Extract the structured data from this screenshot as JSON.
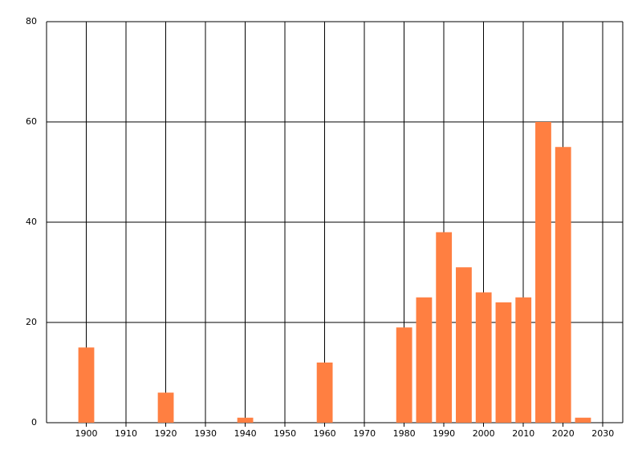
{
  "chart_data": {
    "type": "bar",
    "x": [
      1900,
      1920,
      1940,
      1960,
      1980,
      1985,
      1990,
      1995,
      2000,
      2005,
      2010,
      2015,
      2020,
      2025
    ],
    "values": [
      15,
      6,
      1,
      12,
      19,
      25,
      38,
      31,
      26,
      24,
      25,
      60,
      55,
      1
    ],
    "color": "#ff7f41",
    "xlim": [
      1890,
      2035
    ],
    "xticks": [
      1900,
      1910,
      1920,
      1930,
      1940,
      1950,
      1960,
      1970,
      1980,
      1990,
      2000,
      2010,
      2020,
      2030
    ],
    "ylim": [
      0,
      80
    ],
    "yticks": [
      0,
      20,
      40,
      60,
      80
    ],
    "grid": true
  }
}
